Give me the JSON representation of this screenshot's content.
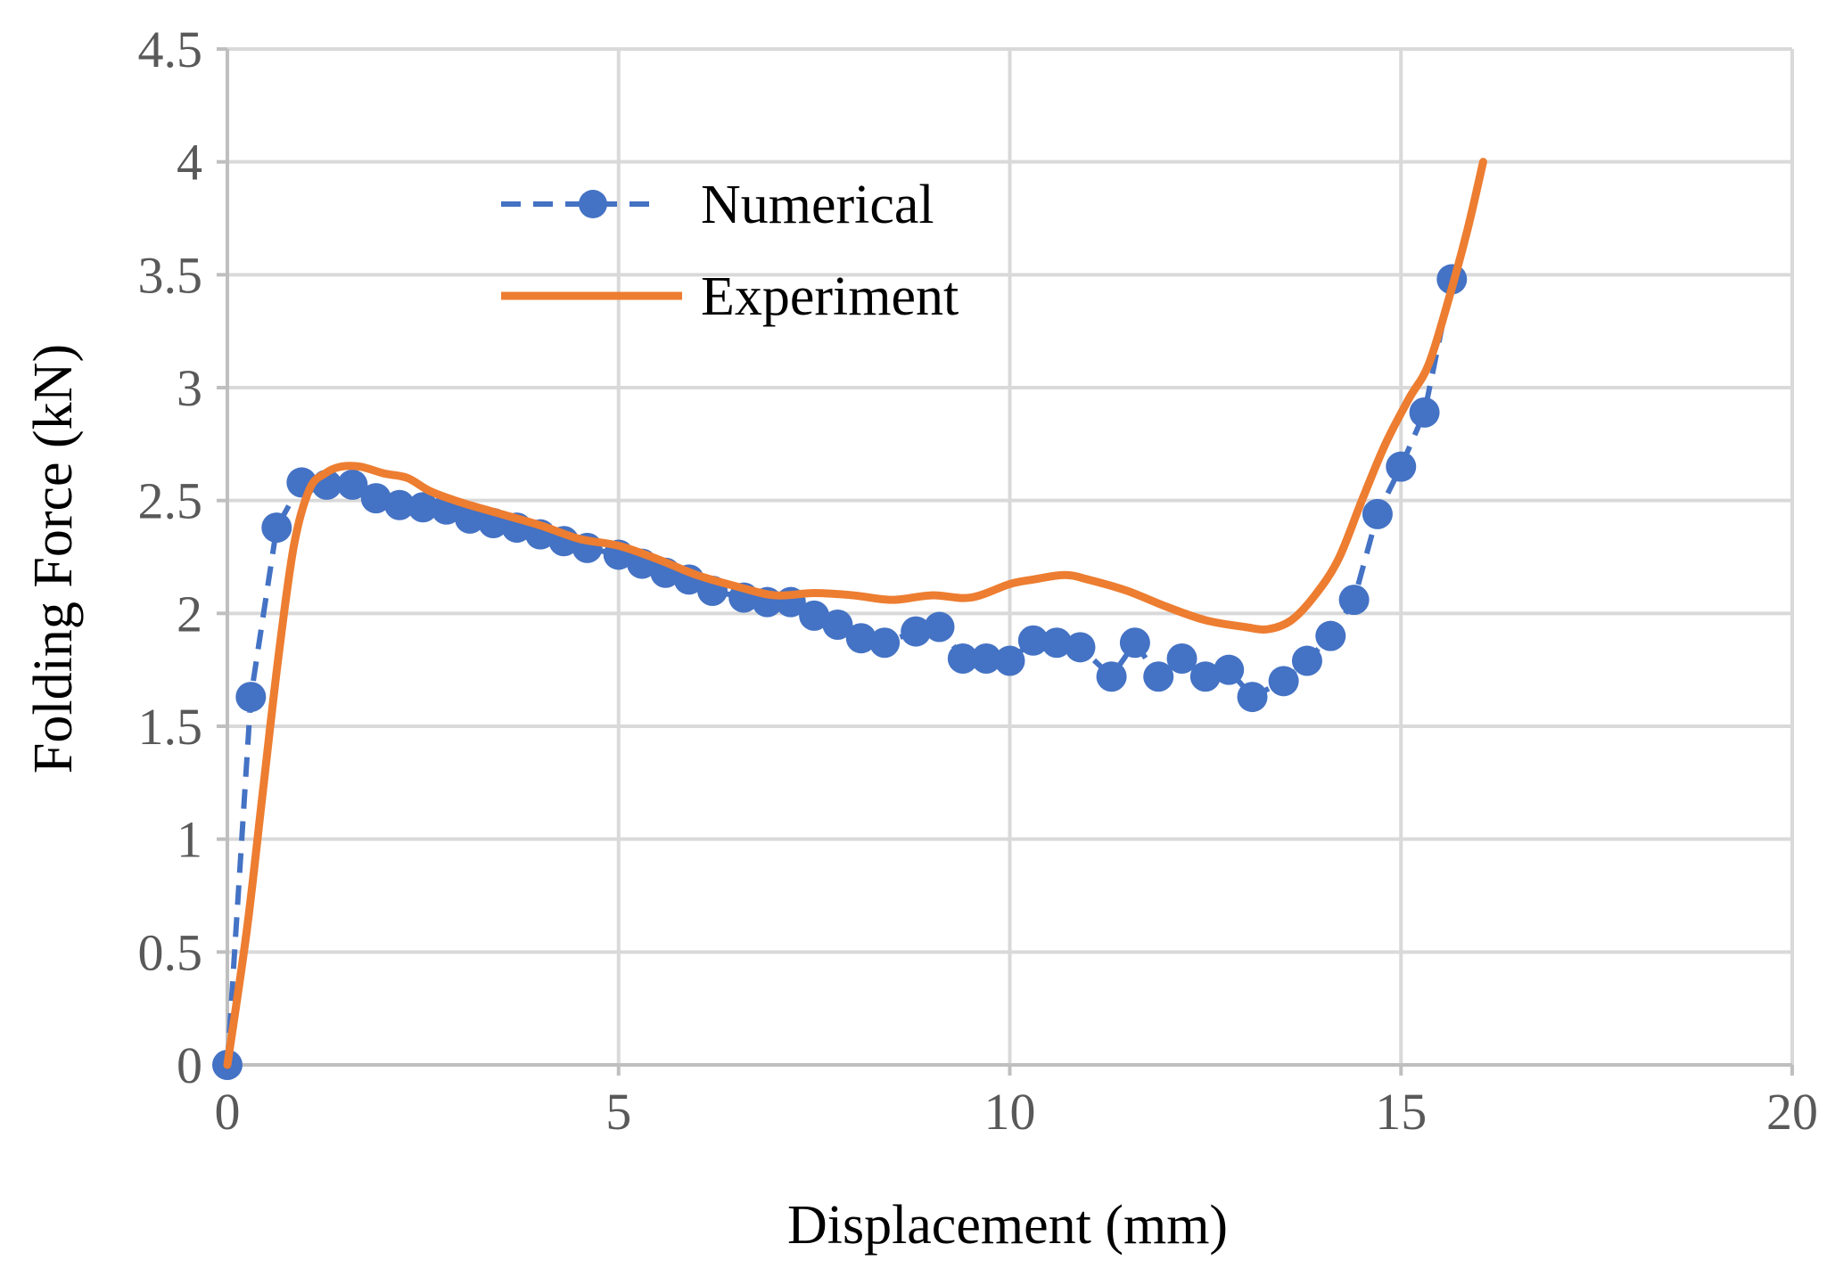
{
  "chart_data": {
    "type": "line",
    "title": "",
    "xlabel": "Displacement (mm)",
    "ylabel": "Folding Force (kN)",
    "xlim": [
      0,
      20
    ],
    "ylim": [
      0,
      4.5
    ],
    "x_ticks": [
      "0",
      "5",
      "10",
      "15",
      "20"
    ],
    "y_ticks": [
      "0",
      "0.5",
      "1",
      "1.5",
      "2",
      "2.5",
      "3",
      "3.5",
      "4",
      "4.5"
    ],
    "grid": true,
    "legend_position": "top-left",
    "series": [
      {
        "name": "Numerical",
        "color": "#4472C4",
        "style": "dashed-with-markers",
        "x": [
          0,
          0.3,
          0.63,
          0.95,
          1.27,
          1.6,
          1.9,
          2.2,
          2.5,
          2.8,
          3.1,
          3.4,
          3.7,
          4.0,
          4.3,
          4.6,
          5.0,
          5.3,
          5.6,
          5.9,
          6.2,
          6.6,
          6.9,
          7.2,
          7.5,
          7.8,
          8.1,
          8.4,
          8.8,
          9.1,
          9.4,
          9.7,
          10.0,
          10.3,
          10.6,
          10.9,
          11.3,
          11.6,
          11.9,
          12.2,
          12.5,
          12.8,
          13.1,
          13.5,
          13.8,
          14.1,
          14.4,
          14.7,
          15.0,
          15.3,
          15.65
        ],
        "y": [
          0,
          1.63,
          2.38,
          2.58,
          2.57,
          2.57,
          2.51,
          2.48,
          2.47,
          2.46,
          2.42,
          2.4,
          2.38,
          2.35,
          2.32,
          2.29,
          2.26,
          2.22,
          2.18,
          2.15,
          2.1,
          2.07,
          2.05,
          2.05,
          1.99,
          1.95,
          1.89,
          1.87,
          1.92,
          1.94,
          1.8,
          1.8,
          1.79,
          1.88,
          1.87,
          1.85,
          1.72,
          1.87,
          1.72,
          1.8,
          1.72,
          1.75,
          1.63,
          1.7,
          1.79,
          1.9,
          2.06,
          2.44,
          2.65,
          2.89,
          3.48
        ]
      },
      {
        "name": "Experiment",
        "color": "#ED7D31",
        "style": "solid",
        "x": [
          0,
          0.25,
          0.45,
          0.65,
          0.85,
          1.05,
          1.25,
          1.45,
          1.7,
          2.0,
          2.3,
          2.6,
          3.0,
          3.5,
          4.0,
          4.5,
          5.0,
          5.5,
          6.0,
          6.5,
          7.0,
          7.5,
          8.0,
          8.5,
          9.0,
          9.5,
          10.0,
          10.3,
          10.7,
          11.0,
          11.5,
          12.0,
          12.5,
          13.0,
          13.3,
          13.6,
          13.9,
          14.2,
          14.5,
          14.8,
          15.1,
          15.35,
          15.6,
          15.85,
          16.05
        ],
        "y": [
          0,
          0.6,
          1.2,
          1.8,
          2.3,
          2.55,
          2.62,
          2.65,
          2.65,
          2.62,
          2.6,
          2.54,
          2.49,
          2.44,
          2.39,
          2.33,
          2.3,
          2.24,
          2.17,
          2.12,
          2.08,
          2.09,
          2.08,
          2.06,
          2.08,
          2.07,
          2.13,
          2.15,
          2.17,
          2.15,
          2.1,
          2.03,
          1.97,
          1.94,
          1.93,
          1.97,
          2.08,
          2.24,
          2.5,
          2.75,
          2.95,
          3.1,
          3.38,
          3.7,
          4.0
        ]
      }
    ]
  }
}
